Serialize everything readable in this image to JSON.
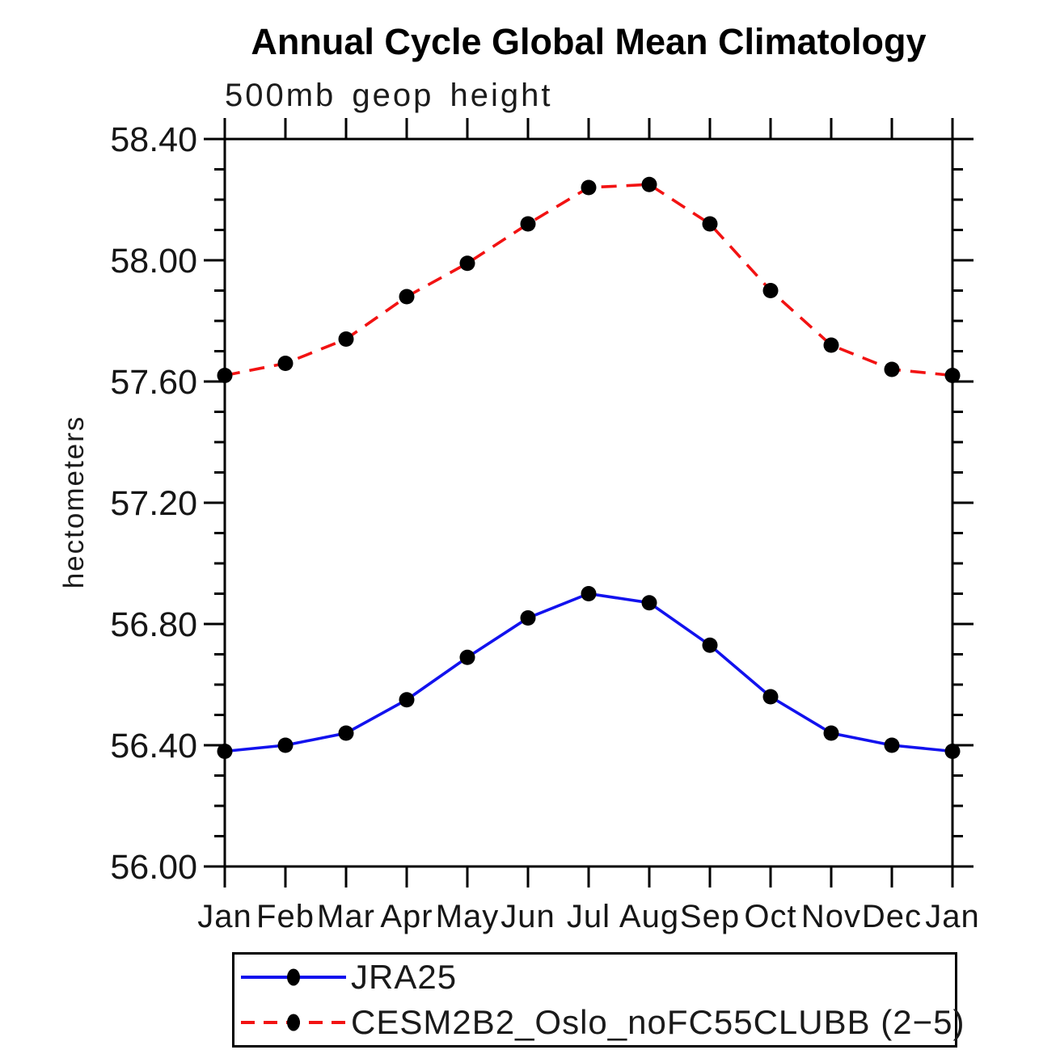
{
  "chart_data": {
    "type": "line",
    "title": "Annual Cycle Global Mean Climatology",
    "subtitle": "500mb geop height",
    "ylabel": "hectometers",
    "categories": [
      "Jan",
      "Feb",
      "Mar",
      "Apr",
      "May",
      "Jun",
      "Jul",
      "Aug",
      "Sep",
      "Oct",
      "Nov",
      "Dec",
      "Jan"
    ],
    "y_axis": {
      "min": 56.0,
      "max": 58.4,
      "major_step": 0.4,
      "minor_step": 0.1,
      "tick_label_decimals": 2
    },
    "ylim": [
      56.0,
      58.4
    ],
    "grid": false,
    "legend_position": "below-plot-boxed",
    "axis_color": "#000000",
    "marker_color": "#000000",
    "series": [
      {
        "name": "JRA25",
        "color": "#1212ee",
        "line_style": "solid",
        "marker": "filled-circle",
        "marker_color": "#000000",
        "values": [
          56.38,
          56.4,
          56.44,
          56.55,
          56.69,
          56.82,
          56.9,
          56.87,
          56.73,
          56.56,
          56.44,
          56.4,
          56.38
        ]
      },
      {
        "name": "CESM2B2_Oslo_noFC55CLUBB (2−5)",
        "color": "#f21212",
        "line_style": "dashed",
        "marker": "filled-circle",
        "marker_color": "#000000",
        "values": [
          57.62,
          57.66,
          57.74,
          57.88,
          57.99,
          58.12,
          58.24,
          58.25,
          58.12,
          57.9,
          57.72,
          57.64,
          57.62
        ]
      }
    ]
  }
}
